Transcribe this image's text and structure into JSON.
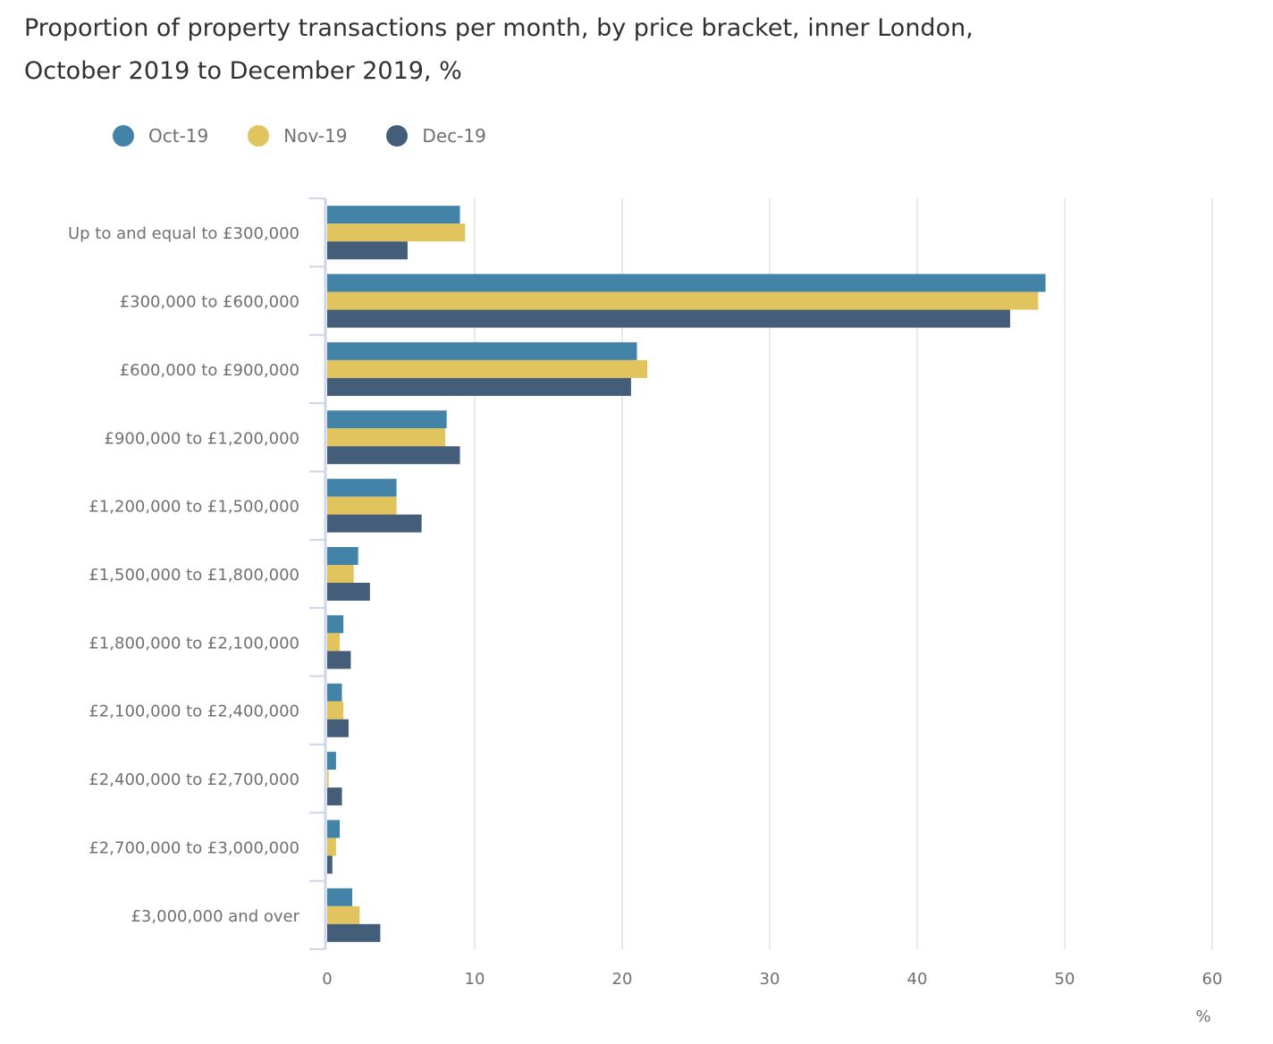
{
  "title_line1": "Proportion of property transactions per month, by price bracket, inner London,",
  "title_line2": "October 2019 to December 2019, %",
  "chart_data": {
    "type": "bar",
    "orientation": "horizontal",
    "title": "Proportion of property transactions per month, by price bracket, inner London, October 2019 to December 2019, %",
    "xlabel": "%",
    "ylabel": "",
    "xlim": [
      0,
      60
    ],
    "xticks": [
      0,
      10,
      20,
      30,
      40,
      50,
      60
    ],
    "grid": true,
    "legend_position": "top-left",
    "categories": [
      "Up to and equal to £300,000",
      "£300,000 to £600,000",
      "£600,000 to £900,000",
      "£900,000 to £1,200,000",
      "£1,200,000 to £1,500,000",
      "£1,500,000 to £1,800,000",
      "£1,800,000 to £2,100,000",
      "£2,100,000 to £2,400,000",
      "£2,400,000 to £2,700,000",
      "£2,700,000 to £3,000,000",
      "£3,000,000 and over"
    ],
    "series": [
      {
        "name": "Oct-19",
        "color": "#4383a8",
        "values": [
          9.0,
          48.7,
          21.0,
          8.1,
          4.7,
          2.1,
          1.1,
          1.0,
          0.6,
          0.85,
          1.7
        ]
      },
      {
        "name": "Nov-19",
        "color": "#e1c45e",
        "values": [
          9.35,
          48.2,
          21.7,
          8.0,
          4.7,
          1.8,
          0.85,
          1.1,
          0.1,
          0.6,
          2.2
        ]
      },
      {
        "name": "Dec-19",
        "color": "#445e7a",
        "values": [
          5.45,
          46.3,
          20.6,
          9.0,
          6.4,
          2.9,
          1.6,
          1.45,
          1.0,
          0.35,
          3.6
        ]
      }
    ]
  }
}
